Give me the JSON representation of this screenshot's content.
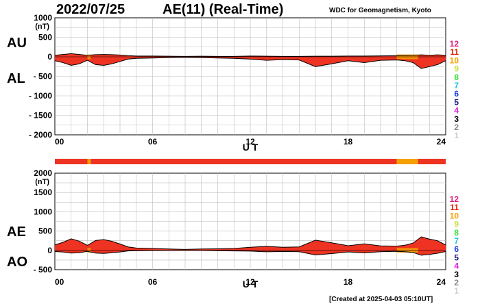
{
  "header": {
    "date": "2022/07/25",
    "title": "AE(11) (Real-Time)",
    "source": "WDC for Geomagnetism, Kyoto"
  },
  "footer": {
    "created": "[Created at 2025-04-03 05:10UT]"
  },
  "colors": {
    "fill": "#ee3322",
    "orange": "#f5a000",
    "count_palette": [
      "#cccccc",
      "#888888",
      "#000000",
      "#e020e0",
      "#202080",
      "#2040e0",
      "#20c0e0",
      "#40e040",
      "#c8e040",
      "#f5a000",
      "#e02000",
      "#e0207a"
    ]
  },
  "station_count_labels": [
    "12",
    "11",
    "10",
    "9",
    "8",
    "7",
    "6",
    "5",
    "4",
    "3",
    "2",
    "1"
  ],
  "chart_data": [
    {
      "type": "area",
      "series": [
        {
          "name": "AU",
          "x": [
            0,
            0.5,
            1,
            1.5,
            2,
            2.5,
            3,
            3.5,
            4,
            4.5,
            5,
            6,
            7,
            8,
            9,
            10,
            11,
            12,
            13,
            14,
            15,
            16,
            17,
            18,
            19,
            20,
            21,
            21.5,
            22,
            22.5,
            23,
            23.5,
            24
          ],
          "values": [
            40,
            60,
            80,
            60,
            40,
            55,
            60,
            55,
            45,
            30,
            20,
            20,
            15,
            10,
            15,
            10,
            10,
            20,
            15,
            10,
            10,
            15,
            15,
            20,
            20,
            25,
            30,
            35,
            40,
            50,
            40,
            50,
            40
          ]
        },
        {
          "name": "AL",
          "x": [
            0,
            0.5,
            1,
            1.5,
            2,
            2.5,
            3,
            3.5,
            4,
            4.5,
            5,
            6,
            7,
            8,
            9,
            10,
            11,
            12,
            13,
            14,
            15,
            16,
            17,
            18,
            19,
            20,
            21,
            21.5,
            22,
            22.5,
            23,
            23.5,
            24
          ],
          "values": [
            -100,
            -150,
            -220,
            -180,
            -90,
            -200,
            -220,
            -180,
            -120,
            -60,
            -40,
            -30,
            -20,
            -15,
            -20,
            -30,
            -40,
            -60,
            -90,
            -70,
            -80,
            -250,
            -180,
            -100,
            -150,
            -90,
            -80,
            -100,
            -150,
            -300,
            -250,
            -200,
            -100
          ]
        }
      ],
      "xticks": [
        "00",
        "06",
        "12",
        "18",
        "24"
      ],
      "xlabel": "U T",
      "xlim": [
        0,
        24
      ],
      "ylim": [
        -2000,
        1000
      ],
      "yticks": [
        "1000",
        "500",
        "0",
        "- 500",
        "- 1000",
        "- 1500",
        "- 2000"
      ],
      "ylabel_units": "(nT)",
      "labels": {
        "upper": "AU",
        "lower": "AL"
      },
      "grid": true,
      "orange_spans": [
        [
          2.0,
          2.2
        ],
        [
          21.0,
          22.3
        ]
      ]
    },
    {
      "type": "area",
      "series": [
        {
          "name": "AE",
          "x": [
            0,
            0.5,
            1,
            1.5,
            2,
            2.5,
            3,
            3.5,
            4,
            4.5,
            5,
            6,
            7,
            8,
            9,
            10,
            11,
            12,
            13,
            14,
            15,
            16,
            17,
            18,
            19,
            20,
            21,
            21.5,
            22,
            22.5,
            23,
            23.5,
            24
          ],
          "values": [
            140,
            210,
            300,
            240,
            130,
            255,
            280,
            235,
            165,
            90,
            60,
            50,
            35,
            25,
            35,
            40,
            50,
            80,
            105,
            80,
            90,
            265,
            195,
            120,
            170,
            115,
            110,
            135,
            190,
            350,
            290,
            250,
            140
          ]
        },
        {
          "name": "AO",
          "x": [
            0,
            0.5,
            1,
            1.5,
            2,
            2.5,
            3,
            3.5,
            4,
            4.5,
            5,
            6,
            7,
            8,
            9,
            10,
            11,
            12,
            13,
            14,
            15,
            16,
            17,
            18,
            19,
            20,
            21,
            21.5,
            22,
            22.5,
            23,
            23.5,
            24
          ],
          "values": [
            -30,
            -45,
            -70,
            -60,
            -25,
            -70,
            -80,
            -60,
            -40,
            -15,
            -10,
            -5,
            -3,
            -3,
            -3,
            -10,
            -15,
            -20,
            -38,
            -30,
            -35,
            -118,
            -83,
            -40,
            -65,
            -33,
            -25,
            -33,
            -55,
            -125,
            -105,
            -75,
            -30
          ]
        }
      ],
      "xticks": [
        "00",
        "06",
        "12",
        "18",
        "24"
      ],
      "xlabel": "U T",
      "xlim": [
        0,
        24
      ],
      "ylim": [
        -500,
        2000
      ],
      "yticks": [
        "2000",
        "1500",
        "1000",
        "500",
        "0",
        "- 500"
      ],
      "ylabel_units": "(nT)",
      "labels": {
        "upper": "AE",
        "lower": "AO"
      },
      "grid": true,
      "orange_spans": [
        [
          2.0,
          2.2
        ],
        [
          21.0,
          22.3
        ]
      ]
    }
  ],
  "coverage_bar": {
    "segments": [
      {
        "from": 0,
        "to": 2.0,
        "count": "11"
      },
      {
        "from": 2.0,
        "to": 2.2,
        "count": "10"
      },
      {
        "from": 2.2,
        "to": 21.0,
        "count": "11"
      },
      {
        "from": 21.0,
        "to": 22.3,
        "count": "10"
      },
      {
        "from": 22.3,
        "to": 24,
        "count": "11"
      }
    ]
  }
}
